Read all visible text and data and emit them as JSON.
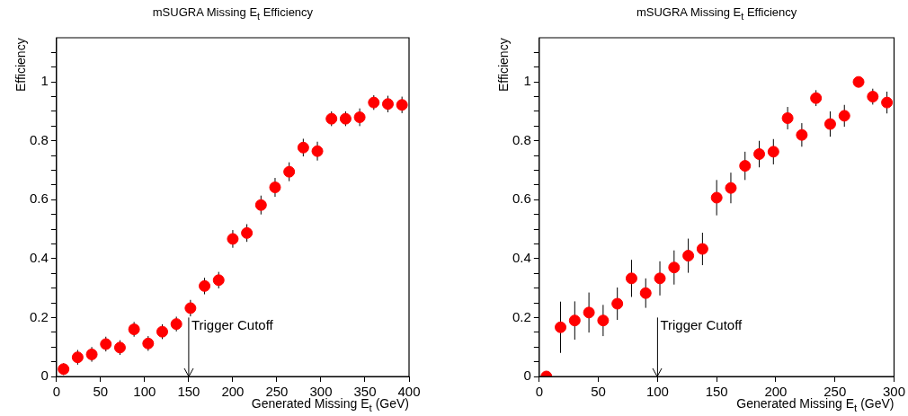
{
  "chart_data": [
    {
      "type": "scatter",
      "title": "mSUGRA Missing E$_{t}$ Efficiency",
      "xlabel": "Generated Missing E$_{t}$ (GeV)",
      "ylabel": "Efficiency",
      "marker": "circle",
      "grid": false,
      "legend": false,
      "xlim": [
        0,
        400
      ],
      "xticks": [
        0,
        50,
        100,
        150,
        200,
        250,
        300,
        350,
        400
      ],
      "ylim": [
        0,
        1.15
      ],
      "yticks": [
        0,
        {
          "value": 0.05,
          "label": null
        },
        {
          "value": 0.1,
          "label": null
        },
        {
          "value": 0.15,
          "label": null
        },
        0.2,
        {
          "value": 0.25,
          "label": null
        },
        {
          "value": 0.3,
          "label": null
        },
        {
          "value": 0.35,
          "label": null
        },
        0.4,
        {
          "value": 0.45,
          "label": null
        },
        {
          "value": 0.5,
          "label": null
        },
        {
          "value": 0.55,
          "label": null
        },
        0.6,
        {
          "value": 0.65,
          "label": null
        },
        {
          "value": 0.7,
          "label": null
        },
        {
          "value": 0.75,
          "label": null
        },
        0.8,
        {
          "value": 0.85,
          "label": null
        },
        {
          "value": 0.9,
          "label": null
        },
        {
          "value": 0.95,
          "label": null
        },
        1,
        {
          "value": 1.05,
          "label": null
        },
        {
          "value": 1.1,
          "label": null
        }
      ],
      "ref_lines": [
        {
          "axis": "x",
          "value": 150,
          "label": "Trigger Cutoff",
          "line_style": "solid",
          "color": "#000000"
        }
      ],
      "series": [
        {
          "color": "#ff0000",
          "x": [
            8,
            24,
            40,
            56,
            72,
            88,
            104,
            120,
            136,
            152,
            168,
            184,
            200,
            216,
            232,
            248,
            264,
            280,
            296,
            312,
            328,
            344,
            360,
            376,
            392
          ],
          "values": [
            0.025,
            0.065,
            0.075,
            0.11,
            0.098,
            0.16,
            0.112,
            0.152,
            0.178,
            0.232,
            0.307,
            0.327,
            0.467,
            0.487,
            0.582,
            0.642,
            0.695,
            0.777,
            0.765,
            0.875,
            0.875,
            0.88,
            0.93,
            0.925,
            0.922
          ],
          "errors": [
            0.02,
            0.025,
            0.025,
            0.025,
            0.025,
            0.025,
            0.025,
            0.025,
            0.025,
            0.028,
            0.028,
            0.028,
            0.03,
            0.03,
            0.032,
            0.032,
            0.032,
            0.03,
            0.032,
            0.025,
            0.025,
            0.03,
            0.025,
            0.028,
            0.028
          ]
        }
      ]
    },
    {
      "type": "scatter",
      "title": "mSUGRA Missing E$_{t}$ Efficiency",
      "xlabel": "Generated Missing E$_{t}$ (GeV)",
      "ylabel": "Efficiency",
      "marker": "circle",
      "grid": false,
      "legend": false,
      "xlim": [
        0,
        300
      ],
      "xticks": [
        0,
        50,
        100,
        150,
        200,
        250,
        300
      ],
      "ylim": [
        0,
        1.15
      ],
      "yticks": [
        0,
        {
          "value": 0.05,
          "label": null
        },
        {
          "value": 0.1,
          "label": null
        },
        {
          "value": 0.15,
          "label": null
        },
        0.2,
        {
          "value": 0.25,
          "label": null
        },
        {
          "value": 0.3,
          "label": null
        },
        {
          "value": 0.35,
          "label": null
        },
        0.4,
        {
          "value": 0.45,
          "label": null
        },
        {
          "value": 0.5,
          "label": null
        },
        {
          "value": 0.55,
          "label": null
        },
        0.6,
        {
          "value": 0.65,
          "label": null
        },
        {
          "value": 0.7,
          "label": null
        },
        {
          "value": 0.75,
          "label": null
        },
        0.8,
        {
          "value": 0.85,
          "label": null
        },
        {
          "value": 0.9,
          "label": null
        },
        {
          "value": 0.95,
          "label": null
        },
        1,
        {
          "value": 1.05,
          "label": null
        },
        {
          "value": 1.1,
          "label": null
        }
      ],
      "ref_lines": [
        {
          "axis": "x",
          "value": 100,
          "label": "Trigger Cutoff",
          "line_style": "solid",
          "color": "#000000"
        }
      ],
      "series": [
        {
          "color": "#ff0000",
          "x": [
            6,
            18,
            30,
            42,
            54,
            66,
            78,
            90,
            102,
            114,
            126,
            138,
            150,
            162,
            174,
            186,
            198,
            210,
            222,
            234,
            246,
            258,
            270,
            282,
            294
          ],
          "values": [
            0,
            0.167,
            0.19,
            0.217,
            0.19,
            0.247,
            0.333,
            0.283,
            0.333,
            0.37,
            0.41,
            0.433,
            0.607,
            0.64,
            0.715,
            0.755,
            0.763,
            0.877,
            0.82,
            0.945,
            0.857,
            0.885,
            1,
            0.95,
            0.93
          ],
          "errors": [
            null,
            0.087,
            0.065,
            0.068,
            0.053,
            0.055,
            0.063,
            0.05,
            0.058,
            0.058,
            0.058,
            0.055,
            0.06,
            0.052,
            0.048,
            0.045,
            0.043,
            0.038,
            0.04,
            0.027,
            0.043,
            0.037,
            null,
            0.027,
            0.037
          ]
        }
      ]
    }
  ]
}
